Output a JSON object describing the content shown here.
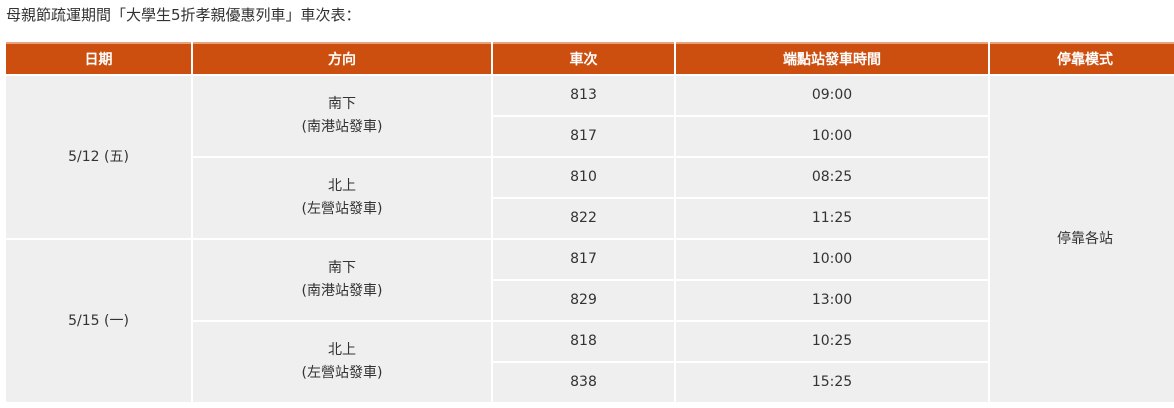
{
  "caption": "母親節疏運期間「大學生5折孝親優惠列車」車次表：",
  "headers": [
    "日期",
    "方向",
    "車次",
    "端點站發車時間",
    "停靠模式"
  ],
  "stop_mode": "停靠各站",
  "dates": [
    {
      "date": "5/12 (五)",
      "directions": [
        {
          "name": "南下",
          "origin": "(南港站發車)",
          "trains": [
            {
              "no": "813",
              "time": "09:00"
            },
            {
              "no": "817",
              "time": "10:00"
            }
          ]
        },
        {
          "name": "北上",
          "origin": "(左營站發車)",
          "trains": [
            {
              "no": "810",
              "time": "08:25"
            },
            {
              "no": "822",
              "time": "11:25"
            }
          ]
        }
      ]
    },
    {
      "date": "5/15 (一)",
      "directions": [
        {
          "name": "南下",
          "origin": "(南港站發車)",
          "trains": [
            {
              "no": "817",
              "time": "10:00"
            },
            {
              "no": "829",
              "time": "13:00"
            }
          ]
        },
        {
          "name": "北上",
          "origin": "(左營站發車)",
          "trains": [
            {
              "no": "818",
              "time": "10:25"
            },
            {
              "no": "838",
              "time": "15:25"
            }
          ]
        }
      ]
    }
  ]
}
